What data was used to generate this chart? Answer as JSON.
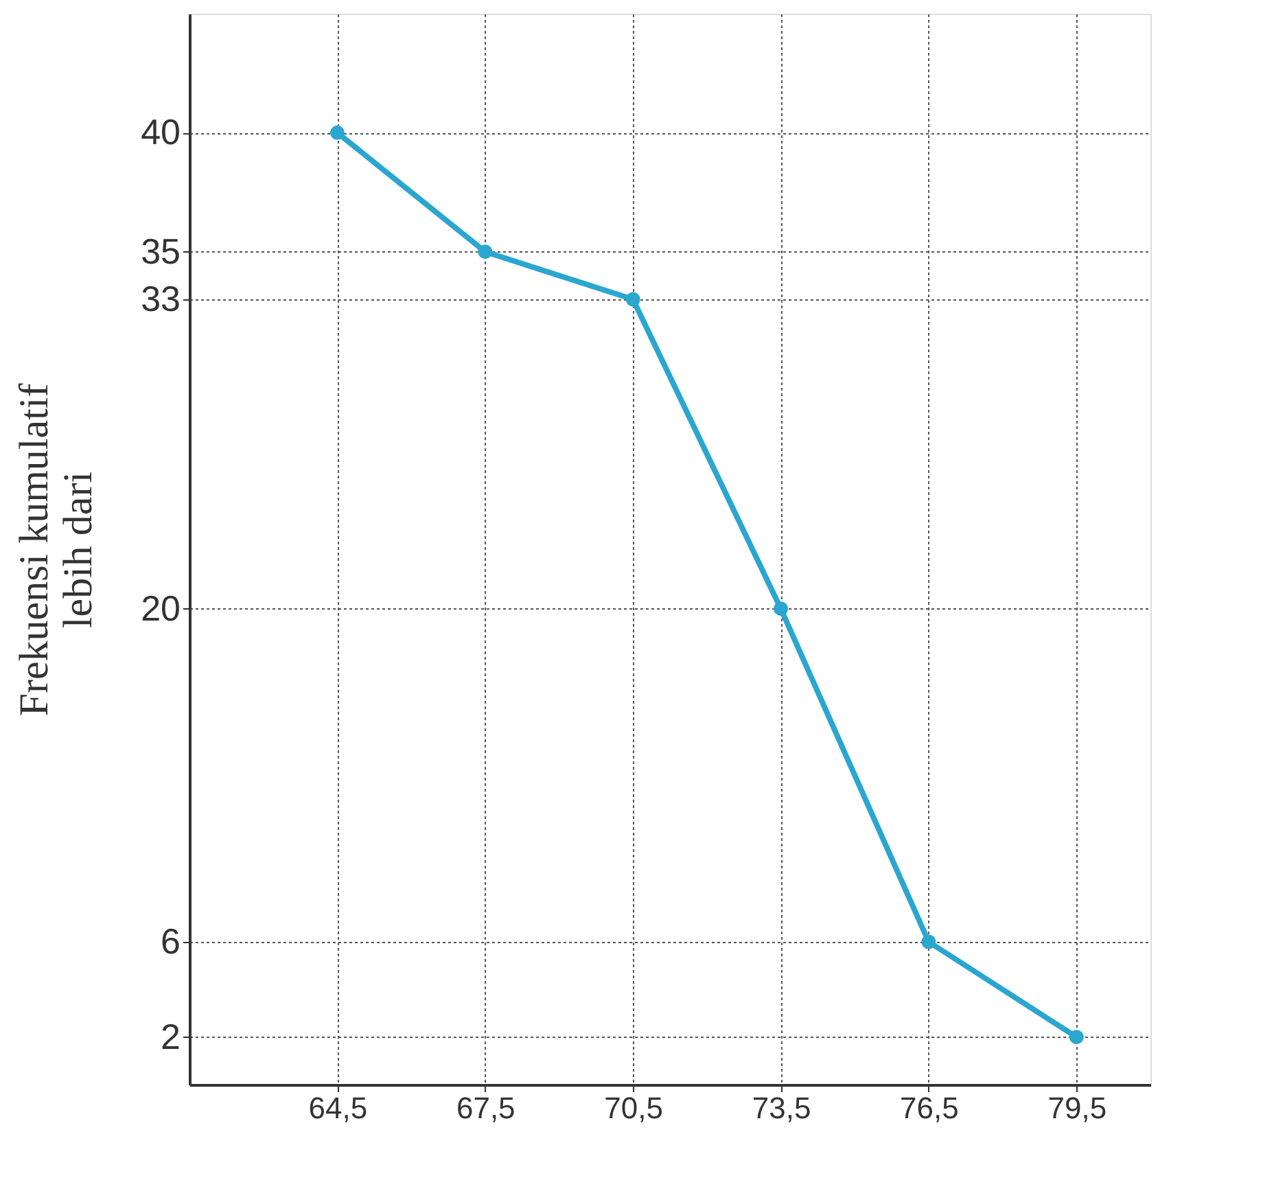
{
  "chart_data": {
    "type": "line",
    "ylabel": "Frekuensi kumulatif\nlebih dari",
    "x": [
      64.5,
      67.5,
      70.5,
      73.5,
      76.5,
      79.5
    ],
    "series": [
      {
        "color": "#2aa6d0",
        "values": [
          40,
          35,
          33,
          20,
          6,
          2
        ]
      }
    ],
    "xlim": [
      61.5,
      81
    ],
    "ylim": [
      0,
      45
    ],
    "xticks": [
      {
        "value": 64.5,
        "label": "64,5"
      },
      {
        "value": 67.5,
        "label": "67,5"
      },
      {
        "value": 70.5,
        "label": "70,5"
      },
      {
        "value": 73.5,
        "label": "73,5"
      },
      {
        "value": 76.5,
        "label": "76,5"
      },
      {
        "value": 79.5,
        "label": "79,5"
      }
    ],
    "yticks": [
      2,
      6,
      20,
      33,
      35,
      40
    ],
    "grid": true,
    "marker": "circle",
    "line_style": "solid"
  }
}
